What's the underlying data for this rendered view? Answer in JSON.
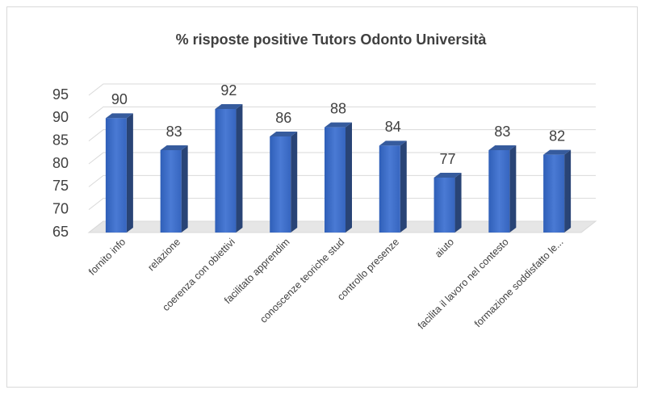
{
  "chart_data": {
    "type": "bar3d",
    "title": "% risposte positive Tutors Odonto Università",
    "categories": [
      "fornito info",
      "relazione",
      "coerenza con obiettivi",
      "facilitato apprendim",
      "conoscenze teoriche stud",
      "controllo presenze",
      "aiuto",
      "facilita il lavoro nel contesto",
      "formazione soddisfatto le..."
    ],
    "values": [
      90,
      83,
      92,
      86,
      88,
      84,
      77,
      83,
      82
    ],
    "color": "#4472c4",
    "ylim": [
      65,
      95
    ],
    "yticks": [
      65,
      70,
      75,
      80,
      85,
      90,
      95
    ],
    "grid": true
  }
}
